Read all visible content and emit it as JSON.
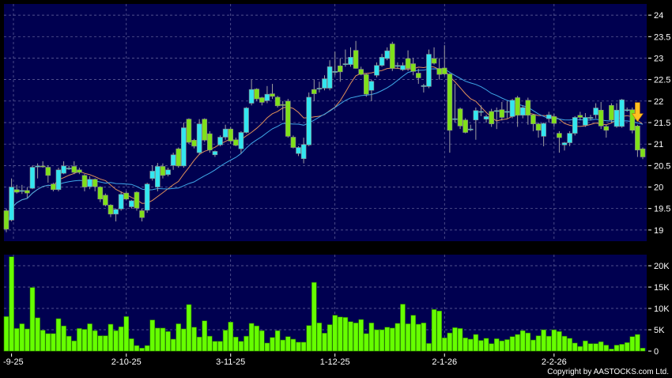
{
  "chart_data": {
    "type": "candlestick",
    "price_axis": {
      "ylim": [
        18.74,
        24.26
      ],
      "ticks": [
        "19",
        "19.5",
        "20",
        "20.5",
        "21",
        "21.5",
        "22",
        "22.5",
        "23",
        "23.5",
        "24"
      ]
    },
    "volume_axis": {
      "ylim": [
        0,
        22600
      ],
      "ticks": [
        "0",
        "5K",
        "10K",
        "15K",
        "20K"
      ]
    },
    "x_tick_labels": [
      {
        "index": 1,
        "label": "-9-25"
      },
      {
        "index": 23,
        "label": "2-10-25"
      },
      {
        "index": 43,
        "label": "3-11-25"
      },
      {
        "index": 63,
        "label": "1-12-25"
      },
      {
        "index": 84,
        "label": "2-1-26"
      },
      {
        "index": 105,
        "label": "2-2-26"
      }
    ],
    "moving_averages": [
      {
        "period": 10,
        "color": "#e0905a"
      },
      {
        "period": 20,
        "color": "#3fa8e8"
      }
    ],
    "colors": {
      "background": "#000050",
      "up": "#33e6f0",
      "down": "#7fe01a",
      "volume": "#66ff00",
      "grid": "#6a6aa0",
      "signal_arrow": "#ffc020"
    },
    "signal_arrow": {
      "index": 121,
      "direction": "down"
    },
    "grid": true,
    "ohlc": [
      [
        19.45,
        19.5,
        18.95,
        19.02
      ],
      [
        19.23,
        20.2,
        19.2,
        20.0
      ],
      [
        19.94,
        20.05,
        19.85,
        19.88
      ],
      [
        19.9,
        20.05,
        19.84,
        19.92
      ],
      [
        19.92,
        20.0,
        19.75,
        19.86
      ],
      [
        19.97,
        20.5,
        19.95,
        20.46
      ],
      [
        20.49,
        20.55,
        20.2,
        20.49
      ],
      [
        20.49,
        20.6,
        20.45,
        20.47
      ],
      [
        20.46,
        20.5,
        20.1,
        20.27
      ],
      [
        20.07,
        20.1,
        19.9,
        19.94
      ],
      [
        19.94,
        20.45,
        19.9,
        20.4
      ],
      [
        20.32,
        20.6,
        20.3,
        20.49
      ],
      [
        20.44,
        20.5,
        20.4,
        20.44
      ],
      [
        20.48,
        20.6,
        20.3,
        20.34
      ],
      [
        20.4,
        20.45,
        20.3,
        20.34
      ],
      [
        20.27,
        20.3,
        19.9,
        20.0
      ],
      [
        20.01,
        20.25,
        19.95,
        20.18
      ],
      [
        20.18,
        20.2,
        19.9,
        20.01
      ],
      [
        20.0,
        20.02,
        19.65,
        19.72
      ],
      [
        19.81,
        19.85,
        19.55,
        19.58
      ],
      [
        19.58,
        19.6,
        19.3,
        19.37
      ],
      [
        19.37,
        19.5,
        19.2,
        19.48
      ],
      [
        19.49,
        19.9,
        19.45,
        19.83
      ],
      [
        19.86,
        19.9,
        19.7,
        19.72
      ],
      [
        19.54,
        19.7,
        19.5,
        19.68
      ],
      [
        19.88,
        19.9,
        19.45,
        19.51
      ],
      [
        19.45,
        19.5,
        19.2,
        19.29
      ],
      [
        19.46,
        20.1,
        19.4,
        20.07
      ],
      [
        20.2,
        20.5,
        20.15,
        20.37
      ],
      [
        20.0,
        20.56,
        19.9,
        20.48
      ],
      [
        20.48,
        20.55,
        20.2,
        20.27
      ],
      [
        20.29,
        20.45,
        20.25,
        20.4
      ],
      [
        20.5,
        20.8,
        20.4,
        20.75
      ],
      [
        20.89,
        20.92,
        20.45,
        20.49
      ],
      [
        20.49,
        21.5,
        20.45,
        21.38
      ],
      [
        21.58,
        21.6,
        21.0,
        21.04
      ],
      [
        21.09,
        21.12,
        20.9,
        20.95
      ],
      [
        20.8,
        21.58,
        20.75,
        21.47
      ],
      [
        21.58,
        21.6,
        21.05,
        21.09
      ],
      [
        21.24,
        21.3,
        20.8,
        20.86
      ],
      [
        20.75,
        20.85,
        20.7,
        20.83
      ],
      [
        20.98,
        21.2,
        20.95,
        21.16
      ],
      [
        21.16,
        21.45,
        21.1,
        21.35
      ],
      [
        21.35,
        21.4,
        21.0,
        21.07
      ],
      [
        21.1,
        21.15,
        20.95,
        20.97
      ],
      [
        20.89,
        21.3,
        20.78,
        21.27
      ],
      [
        21.27,
        21.86,
        21.25,
        21.84
      ],
      [
        21.95,
        22.5,
        21.9,
        22.27
      ],
      [
        22.28,
        22.3,
        22.0,
        22.05
      ],
      [
        22.08,
        22.1,
        21.9,
        21.97
      ],
      [
        22.01,
        22.35,
        21.95,
        22.16
      ],
      [
        22.17,
        22.4,
        22.05,
        22.11
      ],
      [
        22.09,
        22.12,
        21.85,
        21.89
      ],
      [
        21.92,
        22.0,
        21.55,
        21.9
      ],
      [
        22.0,
        22.05,
        21.15,
        21.18
      ],
      [
        21.16,
        21.2,
        20.9,
        20.92
      ],
      [
        20.78,
        20.95,
        20.72,
        20.92
      ],
      [
        20.66,
        21.15,
        20.55,
        20.99
      ],
      [
        20.98,
        22.2,
        20.95,
        22.09
      ],
      [
        22.27,
        22.5,
        22.0,
        22.17
      ],
      [
        22.3,
        22.45,
        22.2,
        22.3
      ],
      [
        22.3,
        22.6,
        22.25,
        22.52
      ],
      [
        22.3,
        22.95,
        22.25,
        22.8
      ],
      [
        22.69,
        23.15,
        22.6,
        22.69
      ],
      [
        22.82,
        23.0,
        22.45,
        22.68
      ],
      [
        22.87,
        23.2,
        22.8,
        22.87
      ],
      [
        22.85,
        23.25,
        22.8,
        23.02
      ],
      [
        23.18,
        23.4,
        22.75,
        22.76
      ],
      [
        22.74,
        22.8,
        22.6,
        22.62
      ],
      [
        22.62,
        22.65,
        22.1,
        22.16
      ],
      [
        22.25,
        22.5,
        22.0,
        22.46
      ],
      [
        22.6,
        22.9,
        22.55,
        22.83
      ],
      [
        22.83,
        23.1,
        22.8,
        23.02
      ],
      [
        22.99,
        23.25,
        22.95,
        23.17
      ],
      [
        23.33,
        23.38,
        22.7,
        22.76
      ],
      [
        22.83,
        22.9,
        22.75,
        22.83
      ],
      [
        22.73,
        22.9,
        22.7,
        22.83
      ],
      [
        22.99,
        23.18,
        22.7,
        22.76
      ],
      [
        22.87,
        23.0,
        22.6,
        22.69
      ],
      [
        22.65,
        22.75,
        22.4,
        22.54
      ],
      [
        22.36,
        22.4,
        22.2,
        22.36
      ],
      [
        22.34,
        23.2,
        22.3,
        23.09
      ],
      [
        22.99,
        23.25,
        22.85,
        22.88
      ],
      [
        22.76,
        23.0,
        22.5,
        22.62
      ],
      [
        22.77,
        23.3,
        22.6,
        22.63
      ],
      [
        22.63,
        22.65,
        20.8,
        21.32
      ],
      [
        21.59,
        22.4,
        21.5,
        21.59
      ],
      [
        21.82,
        21.85,
        21.35,
        21.42
      ],
      [
        21.56,
        21.6,
        21.25,
        21.27
      ],
      [
        21.35,
        21.45,
        21.3,
        21.35
      ],
      [
        21.56,
        21.85,
        21.1,
        21.78
      ],
      [
        21.76,
        21.9,
        21.65,
        21.76
      ],
      [
        21.58,
        21.68,
        21.5,
        21.64
      ],
      [
        21.76,
        21.82,
        21.4,
        21.47
      ],
      [
        21.78,
        21.85,
        21.35,
        21.78
      ],
      [
        21.8,
        21.98,
        21.55,
        21.62
      ],
      [
        21.76,
        22.0,
        21.6,
        21.76
      ],
      [
        21.64,
        22.05,
        21.6,
        22.02
      ],
      [
        22.08,
        22.12,
        21.4,
        21.67
      ],
      [
        21.67,
        21.9,
        21.6,
        21.85
      ],
      [
        22.02,
        22.08,
        21.45,
        21.67
      ],
      [
        21.68,
        21.7,
        21.3,
        21.47
      ],
      [
        21.47,
        21.5,
        21.15,
        21.32
      ],
      [
        21.18,
        21.5,
        20.95,
        21.48
      ],
      [
        21.59,
        21.75,
        21.5,
        21.68
      ],
      [
        21.64,
        21.7,
        21.4,
        21.48
      ],
      [
        21.25,
        21.3,
        20.8,
        21.15
      ],
      [
        20.98,
        21.05,
        20.85,
        21.03
      ],
      [
        21.03,
        21.3,
        20.95,
        21.25
      ],
      [
        21.25,
        21.65,
        21.2,
        21.62
      ],
      [
        21.67,
        21.75,
        21.55,
        21.62
      ],
      [
        21.44,
        21.72,
        21.4,
        21.62
      ],
      [
        21.62,
        21.68,
        21.55,
        21.62
      ],
      [
        21.68,
        21.95,
        21.6,
        21.84
      ],
      [
        21.79,
        21.98,
        21.35,
        21.42
      ],
      [
        21.41,
        21.45,
        21.15,
        21.32
      ],
      [
        21.9,
        21.95,
        21.5,
        21.56
      ],
      [
        21.41,
        21.95,
        21.38,
        21.79
      ],
      [
        21.41,
        22.05,
        21.38,
        22.03
      ],
      [
        21.8,
        21.85,
        21.75,
        21.8
      ],
      [
        21.8,
        21.85,
        21.25,
        21.32
      ],
      [
        21.42,
        21.45,
        20.7,
        20.86
      ],
      [
        20.89,
        20.92,
        20.65,
        20.7
      ]
    ],
    "volume_k": [
      8.1,
      22.1,
      5.3,
      6.4,
      5.2,
      14.9,
      7.8,
      4.9,
      4.1,
      4.1,
      7.6,
      5.9,
      3.5,
      2.4,
      5.3,
      5.1,
      6.4,
      4.8,
      3.6,
      3.6,
      6.3,
      4.8,
      5.7,
      8.1,
      2.9,
      1.3,
      0.7,
      1.3,
      7.3,
      5.4,
      5.4,
      4.6,
      2.8,
      6.4,
      5.2,
      10.9,
      5.6,
      3.3,
      7.1,
      3.5,
      2.3,
      2.3,
      4.9,
      6.8,
      3.3,
      2.3,
      3.5,
      6.5,
      5.9,
      4.8,
      1.9,
      3.2,
      4.8,
      2.6,
      3.4,
      2.8,
      2.1,
      2.1,
      6.0,
      16.1,
      6.6,
      4.2,
      6.2,
      8.4,
      8.0,
      7.9,
      6.9,
      6.6,
      7.4,
      4.1,
      6.6,
      5.0,
      5.0,
      5.6,
      5.4,
      6.5,
      11.0,
      6.4,
      8.4,
      6.3,
      6.6,
      1.8,
      9.75,
      9.4,
      3.1,
      4.25,
      5.5,
      5.3,
      3.1,
      2.8,
      3.9,
      2.5,
      3.0,
      1.75,
      2.9,
      2.4,
      2.7,
      3.4,
      3.9,
      4.8,
      4.25,
      2.6,
      3.6,
      5.0,
      3.5,
      5.0,
      4.6,
      3.5,
      3.0,
      1.9,
      1.1,
      2.4,
      1.75,
      1.75,
      2.2,
      1.4,
      0.5,
      1.4,
      1.6,
      2.0,
      3.4,
      3.9,
      0.7
    ]
  },
  "footer": {
    "copyright": "Copyright by AASTOCKS.com Ltd."
  }
}
